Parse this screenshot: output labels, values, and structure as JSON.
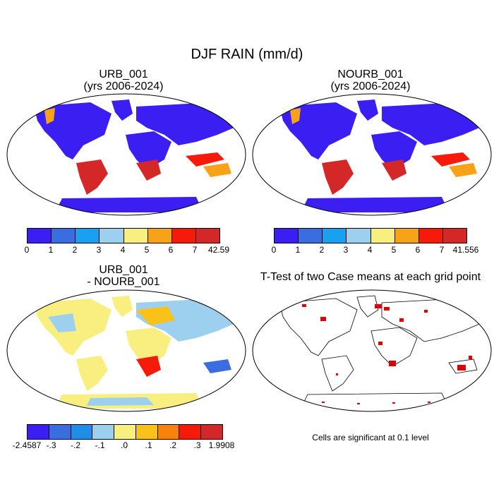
{
  "main_title": "DJF RAIN (mm/d)",
  "panels": {
    "top_left": {
      "title_line1": "URB_001",
      "title_line2": "(yrs 2006-2024)"
    },
    "top_right": {
      "title_line1": "NOURB_001",
      "title_line2": "(yrs 2006-2024)"
    },
    "bottom_left": {
      "title_line1": "URB_001",
      "title_line2": "- NOURB_001"
    },
    "bottom_right": {
      "title_line1": "T-Test of two Case means at each grid point"
    }
  },
  "footnote": "Cells are significant at 0.1 level",
  "colorbars": {
    "rain_urb": {
      "colors": [
        "#3a1ef2",
        "#3a6ee0",
        "#19a0f0",
        "#9dd0ee",
        "#f8ef80",
        "#f8a21a",
        "#f51a0a",
        "#d42828"
      ],
      "labels": [
        "0",
        "1",
        "2",
        "3",
        "4",
        "5",
        "6",
        "7",
        "42.59"
      ]
    },
    "rain_nourb": {
      "colors": [
        "#3a1ef2",
        "#3a6ee0",
        "#19a0f0",
        "#9dd0ee",
        "#f8ef80",
        "#f8a21a",
        "#f51a0a",
        "#d42828"
      ],
      "labels": [
        "0",
        "1",
        "2",
        "3",
        "4",
        "5",
        "6",
        "7",
        "41.556"
      ]
    },
    "diff": {
      "colors": [
        "#3a1ef2",
        "#3a6ee0",
        "#1e8ee8",
        "#9dd0ee",
        "#f8ef80",
        "#f8c21a",
        "#f8820a",
        "#f51a0a",
        "#d42828"
      ],
      "labels": [
        "-2.4587",
        "-.3",
        "-.2",
        "-.1",
        ".0",
        ".1",
        ".2",
        ".3",
        "1.9908"
      ]
    }
  },
  "significance_color": "#e00000",
  "land_colors": {
    "dry": "#3a1ef2",
    "wet": "#d42828",
    "mid": "#f8a21a",
    "diff_pos": "#f8ef80",
    "diff_neg": "#9dd0ee"
  }
}
